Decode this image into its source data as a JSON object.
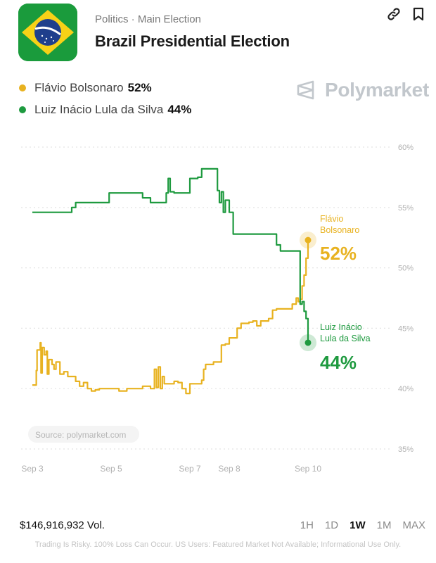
{
  "header": {
    "category": "Politics · Main Election",
    "title": "Brazil Presidential Election"
  },
  "legend": [
    {
      "name": "Flávio Bolsonaro",
      "pct": "52%",
      "color": "#e8b220"
    },
    {
      "name": "Luiz Inácio Lula da Silva",
      "pct": "44%",
      "color": "#1e9a3f"
    }
  ],
  "brand": "Polymarket",
  "chart_data": {
    "type": "line",
    "ylim": [
      35,
      60
    ],
    "yticks": [
      35,
      40,
      45,
      50,
      55,
      60
    ],
    "ytick_labels": [
      "35%",
      "40%",
      "45%",
      "50%",
      "55%",
      "60%"
    ],
    "xlim": [
      3,
      10.6
    ],
    "xticks": [
      3,
      5,
      7,
      8,
      10
    ],
    "xtick_labels": [
      "Sep 3",
      "Sep 5",
      "Sep 7",
      "Sep 8",
      "Sep 10"
    ],
    "grid": true,
    "source": "Source: polymarket.com",
    "series": [
      {
        "name": "Flávio Bolsonaro",
        "label_lines": [
          "Flávio",
          "Bolsonaro"
        ],
        "end_label": "52%",
        "color": "#e8b220",
        "x": [
          3.0,
          3.1,
          3.12,
          3.2,
          3.22,
          3.25,
          3.3,
          3.35,
          3.38,
          3.42,
          3.5,
          3.55,
          3.6,
          3.7,
          3.8,
          3.9,
          4.0,
          4.1,
          4.2,
          4.3,
          4.4,
          4.5,
          4.6,
          4.7,
          4.8,
          5.0,
          5.1,
          5.2,
          5.4,
          5.6,
          5.8,
          6.0,
          6.1,
          6.15,
          6.2,
          6.25,
          6.3,
          6.35,
          6.4,
          6.5,
          6.6,
          6.7,
          6.8,
          6.9,
          7.0,
          7.1,
          7.2,
          7.3,
          7.35,
          7.4,
          7.5,
          7.6,
          7.8,
          7.9,
          8.0,
          8.1,
          8.2,
          8.3,
          8.4,
          8.5,
          8.6,
          8.7,
          8.8,
          8.9,
          9.0,
          9.1,
          9.2,
          9.3,
          9.4,
          9.5,
          9.6,
          9.7,
          9.75,
          9.8,
          9.85,
          9.9,
          9.95,
          10.0
        ],
        "values": [
          40.3,
          41.5,
          43.2,
          43.8,
          41.3,
          43.4,
          42.8,
          43.1,
          41.2,
          42.4,
          42.0,
          41.6,
          42.2,
          41.2,
          41.4,
          41.0,
          41.0,
          40.6,
          40.2,
          40.5,
          40.0,
          39.8,
          39.9,
          40.0,
          40.0,
          40.0,
          40.0,
          39.8,
          40.0,
          40.0,
          40.2,
          40.0,
          41.6,
          40.1,
          41.8,
          40.0,
          41.0,
          40.4,
          40.4,
          40.4,
          40.6,
          40.5,
          40.0,
          39.6,
          40.4,
          40.4,
          40.4,
          40.7,
          41.6,
          42.0,
          42.0,
          42.2,
          43.6,
          43.7,
          44.2,
          44.2,
          45.0,
          45.4,
          45.4,
          45.5,
          45.6,
          45.2,
          45.6,
          45.6,
          45.8,
          46.5,
          46.6,
          46.6,
          46.6,
          46.6,
          47.0,
          47.5,
          47.2,
          47.4,
          48.5,
          49.4,
          50.8,
          52.3
        ]
      },
      {
        "name": "Luiz Inácio Lula da Silva",
        "label_lines": [
          "Luiz Inácio",
          "Lula da Silva"
        ],
        "end_label": "44%",
        "color": "#1e9a3f",
        "x": [
          3.0,
          3.2,
          3.4,
          3.5,
          3.6,
          3.8,
          3.95,
          4.0,
          4.1,
          4.2,
          4.4,
          4.6,
          4.8,
          4.95,
          5.0,
          5.2,
          5.4,
          5.6,
          5.8,
          6.0,
          6.1,
          6.2,
          6.3,
          6.4,
          6.45,
          6.5,
          6.6,
          6.8,
          7.0,
          7.2,
          7.3,
          7.4,
          7.5,
          7.6,
          7.7,
          7.75,
          7.8,
          7.85,
          7.9,
          8.0,
          8.1,
          8.2,
          8.4,
          8.6,
          8.8,
          9.0,
          9.2,
          9.3,
          9.4,
          9.6,
          9.7,
          9.75,
          9.8,
          9.85,
          9.9,
          9.95,
          10.0
        ],
        "values": [
          54.6,
          54.6,
          54.6,
          54.6,
          54.6,
          54.6,
          54.6,
          55.0,
          55.4,
          55.4,
          55.4,
          55.4,
          55.4,
          56.2,
          56.2,
          56.2,
          56.2,
          56.2,
          55.8,
          55.4,
          55.4,
          55.4,
          55.4,
          56.2,
          57.4,
          56.3,
          56.2,
          56.2,
          57.4,
          57.5,
          58.2,
          58.2,
          58.2,
          58.2,
          56.4,
          55.4,
          56.3,
          54.6,
          55.6,
          54.6,
          52.8,
          52.8,
          52.8,
          52.8,
          52.8,
          52.8,
          51.9,
          51.4,
          51.4,
          51.4,
          51.4,
          51.4,
          47.0,
          47.2,
          46.4,
          45.8,
          43.8
        ]
      }
    ]
  },
  "footer": {
    "volume": "$146,916,932 Vol.",
    "ranges": [
      "1H",
      "1D",
      "1W",
      "1M",
      "MAX"
    ],
    "active_range": "1W",
    "disclaimer": "Trading Is Risky. 100% Loss Can Occur. US Users: Featured Market Not Available; Informational Use Only."
  }
}
